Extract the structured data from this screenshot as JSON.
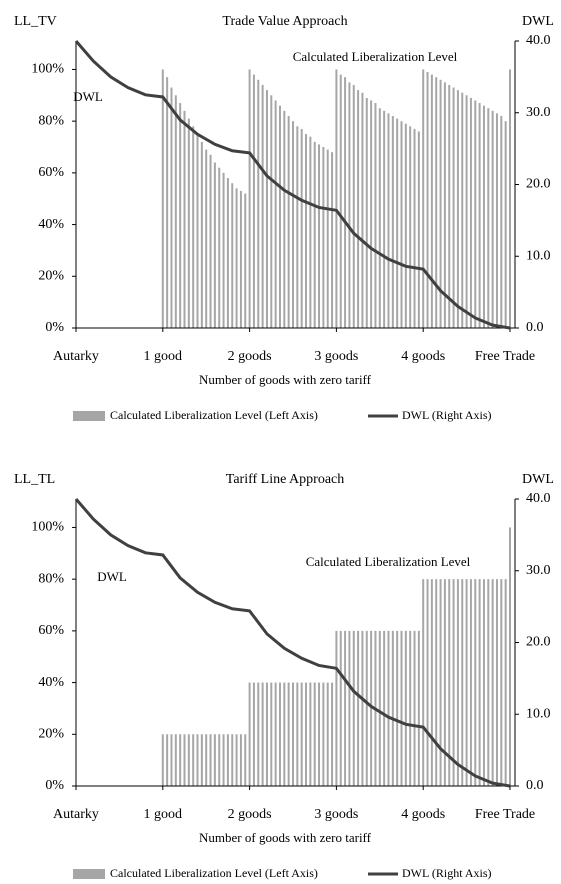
{
  "chart_data": [
    {
      "type": "combo",
      "title": "Trade Value Approach",
      "y_label": "LL_TV",
      "y2_label": "DWL",
      "x_label": "Number of goods with zero tariff",
      "annotations": [
        "DWL",
        "Calculated Liberalization Level"
      ],
      "xlim": [
        0,
        5
      ],
      "xticks": [
        {
          "value": 0,
          "label": "Autarky"
        },
        {
          "value": 1,
          "label": "1 good"
        },
        {
          "value": 2,
          "label": "2 goods"
        },
        {
          "value": 3,
          "label": "3 goods"
        },
        {
          "value": 4,
          "label": "4 goods"
        },
        {
          "value": 5,
          "label": "Free Trade"
        }
      ],
      "ylim": [
        0,
        111
      ],
      "yticks": [
        {
          "value": 0,
          "label": "0%"
        },
        {
          "value": 20,
          "label": "20%"
        },
        {
          "value": 40,
          "label": "40%"
        },
        {
          "value": 60,
          "label": "60%"
        },
        {
          "value": 80,
          "label": "80%"
        },
        {
          "value": 100,
          "label": "100%"
        }
      ],
      "y2lim": [
        0,
        40
      ],
      "y2ticks": [
        {
          "value": 0,
          "label": "0.0"
        },
        {
          "value": 10,
          "label": "10.0"
        },
        {
          "value": 20,
          "label": "20.0"
        },
        {
          "value": 30,
          "label": "30.0"
        },
        {
          "value": 40,
          "label": "40.0"
        }
      ],
      "series": [
        {
          "name": "Calculated Liberalization Level (Left Axis)",
          "color": "#a6a6a6",
          "kind": "bar",
          "x": [
            1,
            1.05,
            1.1,
            1.15,
            1.2,
            1.25,
            1.3,
            1.35,
            1.4,
            1.45,
            1.5,
            1.55,
            1.6,
            1.65,
            1.7,
            1.75,
            1.8,
            1.85,
            1.9,
            1.95,
            2,
            2.05,
            2.1,
            2.15,
            2.2,
            2.25,
            2.3,
            2.35,
            2.4,
            2.45,
            2.5,
            2.55,
            2.6,
            2.65,
            2.7,
            2.75,
            2.8,
            2.85,
            2.9,
            2.95,
            3,
            3.05,
            3.1,
            3.15,
            3.2,
            3.25,
            3.3,
            3.35,
            3.4,
            3.45,
            3.5,
            3.55,
            3.6,
            3.65,
            3.7,
            3.75,
            3.8,
            3.85,
            3.9,
            3.95,
            4,
            4.05,
            4.1,
            4.15,
            4.2,
            4.25,
            4.3,
            4.35,
            4.4,
            4.45,
            4.5,
            4.55,
            4.6,
            4.65,
            4.7,
            4.75,
            4.8,
            4.85,
            4.9,
            4.95,
            5
          ],
          "values": [
            100,
            97,
            93,
            90,
            87,
            84,
            81,
            78,
            75,
            72,
            69,
            67,
            64,
            62,
            60,
            58,
            56,
            54,
            53,
            52,
            100,
            98,
            96,
            94,
            92,
            90,
            88,
            86,
            84,
            82,
            80,
            78,
            77,
            75,
            74,
            72,
            71,
            70,
            69,
            68,
            100,
            98,
            97,
            95,
            94,
            92,
            91,
            89,
            88,
            87,
            85,
            84,
            83,
            82,
            81,
            80,
            79,
            78,
            77,
            76,
            100,
            99,
            98,
            97,
            96,
            95,
            94,
            93,
            92,
            91,
            90,
            89,
            88,
            87,
            86,
            85,
            84,
            83,
            82,
            80,
            100
          ]
        },
        {
          "name": "DWL (Right Axis)",
          "color": "#404040",
          "kind": "line",
          "axis": "y2",
          "x": [
            0,
            0.2,
            0.4,
            0.6,
            0.8,
            1,
            1.2,
            1.4,
            1.6,
            1.8,
            2,
            2.2,
            2.4,
            2.6,
            2.8,
            3,
            3.2,
            3.4,
            3.6,
            3.8,
            4,
            4.2,
            4.4,
            4.6,
            4.8,
            5
          ],
          "values": [
            40,
            37.2,
            35,
            33.5,
            32.5,
            32.2,
            29,
            27,
            25.6,
            24.7,
            24.4,
            21.2,
            19.2,
            17.8,
            16.8,
            16.4,
            13.2,
            11.1,
            9.6,
            8.6,
            8.2,
            5.2,
            3,
            1.4,
            0.4,
            0
          ]
        }
      ]
    },
    {
      "type": "combo",
      "title": "Tariff Line Approach",
      "y_label": "LL_TL",
      "y2_label": "DWL",
      "x_label": "Number of goods with zero tariff",
      "annotations": [
        "DWL",
        "Calculated Liberalization Level"
      ],
      "xlim": [
        0,
        5
      ],
      "xticks": [
        {
          "value": 0,
          "label": "Autarky"
        },
        {
          "value": 1,
          "label": "1 good"
        },
        {
          "value": 2,
          "label": "2 goods"
        },
        {
          "value": 3,
          "label": "3 goods"
        },
        {
          "value": 4,
          "label": "4 goods"
        },
        {
          "value": 5,
          "label": "Free Trade"
        }
      ],
      "ylim": [
        0,
        111
      ],
      "yticks": [
        {
          "value": 0,
          "label": "0%"
        },
        {
          "value": 20,
          "label": "20%"
        },
        {
          "value": 40,
          "label": "40%"
        },
        {
          "value": 60,
          "label": "60%"
        },
        {
          "value": 80,
          "label": "80%"
        },
        {
          "value": 100,
          "label": "100%"
        }
      ],
      "y2lim": [
        0,
        40
      ],
      "y2ticks": [
        {
          "value": 0,
          "label": "0.0"
        },
        {
          "value": 10,
          "label": "10.0"
        },
        {
          "value": 20,
          "label": "20.0"
        },
        {
          "value": 30,
          "label": "30.0"
        },
        {
          "value": 40,
          "label": "40.0"
        }
      ],
      "series": [
        {
          "name": "Calculated Liberalization Level (Left Axis)",
          "color": "#a6a6a6",
          "kind": "bar",
          "x": [
            1,
            1.05,
            1.1,
            1.15,
            1.2,
            1.25,
            1.3,
            1.35,
            1.4,
            1.45,
            1.5,
            1.55,
            1.6,
            1.65,
            1.7,
            1.75,
            1.8,
            1.85,
            1.9,
            1.95,
            2,
            2.05,
            2.1,
            2.15,
            2.2,
            2.25,
            2.3,
            2.35,
            2.4,
            2.45,
            2.5,
            2.55,
            2.6,
            2.65,
            2.7,
            2.75,
            2.8,
            2.85,
            2.9,
            2.95,
            3,
            3.05,
            3.1,
            3.15,
            3.2,
            3.25,
            3.3,
            3.35,
            3.4,
            3.45,
            3.5,
            3.55,
            3.6,
            3.65,
            3.7,
            3.75,
            3.8,
            3.85,
            3.9,
            3.95,
            4,
            4.05,
            4.1,
            4.15,
            4.2,
            4.25,
            4.3,
            4.35,
            4.4,
            4.45,
            4.5,
            4.55,
            4.6,
            4.65,
            4.7,
            4.75,
            4.8,
            4.85,
            4.9,
            4.95,
            5
          ],
          "values": [
            20,
            20,
            20,
            20,
            20,
            20,
            20,
            20,
            20,
            20,
            20,
            20,
            20,
            20,
            20,
            20,
            20,
            20,
            20,
            20,
            40,
            40,
            40,
            40,
            40,
            40,
            40,
            40,
            40,
            40,
            40,
            40,
            40,
            40,
            40,
            40,
            40,
            40,
            40,
            40,
            60,
            60,
            60,
            60,
            60,
            60,
            60,
            60,
            60,
            60,
            60,
            60,
            60,
            60,
            60,
            60,
            60,
            60,
            60,
            60,
            80,
            80,
            80,
            80,
            80,
            80,
            80,
            80,
            80,
            80,
            80,
            80,
            80,
            80,
            80,
            80,
            80,
            80,
            80,
            80,
            100
          ]
        },
        {
          "name": "DWL (Right Axis)",
          "color": "#404040",
          "kind": "line",
          "axis": "y2",
          "x": [
            0,
            0.2,
            0.4,
            0.6,
            0.8,
            1,
            1.2,
            1.4,
            1.6,
            1.8,
            2,
            2.2,
            2.4,
            2.6,
            2.8,
            3,
            3.2,
            3.4,
            3.6,
            3.8,
            4,
            4.2,
            4.4,
            4.6,
            4.8,
            5
          ],
          "values": [
            40,
            37.2,
            35,
            33.5,
            32.5,
            32.2,
            29,
            27,
            25.6,
            24.7,
            24.4,
            21.2,
            19.2,
            17.8,
            16.8,
            16.4,
            13.2,
            11.1,
            9.6,
            8.6,
            8.2,
            5.2,
            3,
            1.4,
            0.4,
            0
          ]
        }
      ]
    }
  ]
}
